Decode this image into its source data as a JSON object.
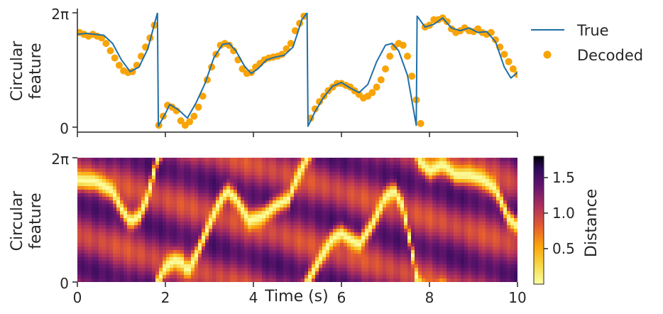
{
  "chart_data": [
    {
      "type": "line",
      "panel": "top",
      "ylabel": [
        "Circular",
        "feature"
      ],
      "yticks": [
        "0",
        "2π"
      ],
      "xlim": [
        0,
        10
      ],
      "ylim": [
        0,
        6.283
      ],
      "series": [
        {
          "name": "True",
          "kind": "line",
          "color": "#1f6fa6",
          "x": [
            0,
            0.2,
            0.4,
            0.6,
            0.8,
            1.0,
            1.2,
            1.4,
            1.6,
            1.82,
            1.84,
            2.0,
            2.1,
            2.3,
            2.5,
            2.7,
            2.9,
            3.1,
            3.3,
            3.45,
            3.6,
            3.8,
            3.95,
            4.1,
            4.3,
            4.5,
            4.7,
            4.9,
            5.1,
            5.22,
            5.24,
            5.4,
            5.6,
            5.8,
            6.0,
            6.2,
            6.4,
            6.6,
            6.8,
            7.0,
            7.15,
            7.3,
            7.5,
            7.7,
            7.72,
            7.9,
            8.1,
            8.3,
            8.5,
            8.7,
            8.9,
            9.1,
            9.3,
            9.5,
            9.7,
            9.85,
            10.0
          ],
          "values": [
            5.1,
            5.15,
            5.1,
            5.05,
            4.6,
            3.7,
            3.05,
            3.3,
            4.3,
            6.28,
            0.05,
            0.75,
            1.25,
            0.95,
            0.5,
            1.35,
            2.4,
            3.8,
            4.55,
            4.6,
            4.2,
            3.35,
            2.95,
            3.2,
            3.7,
            3.85,
            3.95,
            4.4,
            5.9,
            6.28,
            0.05,
            0.85,
            1.65,
            2.25,
            2.45,
            2.15,
            1.9,
            2.35,
            3.6,
            4.5,
            4.6,
            4.2,
            2.85,
            0.1,
            6.1,
            5.5,
            5.65,
            6.0,
            5.45,
            5.3,
            5.45,
            5.2,
            5.25,
            4.7,
            3.3,
            2.7,
            3.0
          ]
        },
        {
          "name": "Decoded",
          "kind": "scatter",
          "color": "#f8a408",
          "x": [
            0.05,
            0.15,
            0.25,
            0.35,
            0.45,
            0.55,
            0.65,
            0.75,
            0.85,
            0.95,
            1.05,
            1.15,
            1.25,
            1.35,
            1.45,
            1.55,
            1.65,
            1.75,
            1.85,
            1.95,
            2.05,
            2.15,
            2.25,
            2.35,
            2.45,
            2.55,
            2.65,
            2.75,
            2.85,
            2.95,
            3.05,
            3.15,
            3.25,
            3.35,
            3.45,
            3.55,
            3.65,
            3.75,
            3.85,
            3.95,
            4.05,
            4.15,
            4.25,
            4.35,
            4.45,
            4.55,
            4.65,
            4.75,
            4.85,
            4.95,
            5.05,
            5.15,
            5.3,
            5.4,
            5.5,
            5.6,
            5.7,
            5.8,
            5.9,
            6.0,
            6.1,
            6.2,
            6.3,
            6.4,
            6.5,
            6.6,
            6.7,
            6.8,
            6.9,
            7.0,
            7.1,
            7.2,
            7.3,
            7.4,
            7.5,
            7.6,
            7.7,
            7.8,
            7.9,
            8.0,
            8.1,
            8.2,
            8.3,
            8.4,
            8.5,
            8.6,
            8.7,
            8.8,
            8.9,
            9.0,
            9.1,
            9.2,
            9.3,
            9.4,
            9.5,
            9.6,
            9.7,
            9.8,
            9.9,
            10.0
          ],
          "values": [
            5.2,
            5.1,
            5.0,
            5.1,
            5.0,
            4.9,
            4.6,
            4.2,
            3.8,
            3.4,
            3.1,
            3.0,
            3.05,
            3.4,
            3.9,
            4.4,
            4.9,
            5.6,
            0.1,
            0.6,
            1.2,
            1.1,
            0.9,
            0.35,
            0.1,
            0.3,
            0.6,
            1.1,
            1.7,
            2.6,
            3.3,
            4.0,
            4.5,
            4.6,
            4.5,
            4.2,
            3.7,
            3.2,
            2.95,
            3.0,
            3.3,
            3.5,
            3.7,
            3.8,
            3.85,
            3.9,
            4.0,
            4.3,
            4.6,
            5.3,
            5.7,
            6.1,
            0.5,
            1.0,
            1.4,
            1.7,
            2.0,
            2.2,
            2.4,
            2.4,
            2.3,
            2.2,
            2.0,
            1.8,
            1.6,
            1.7,
            1.9,
            2.2,
            2.6,
            3.2,
            3.9,
            4.4,
            4.6,
            4.5,
            3.9,
            2.8,
            1.5,
            0.2,
            5.5,
            5.6,
            5.9,
            5.9,
            6.0,
            5.8,
            5.4,
            5.2,
            5.3,
            5.45,
            5.3,
            5.25,
            5.4,
            5.2,
            5.1,
            5.2,
            4.8,
            4.4,
            4.0,
            3.6,
            3.2,
            2.9
          ]
        }
      ],
      "legend": {
        "position": "right",
        "entries": [
          "True",
          "Decoded"
        ]
      }
    },
    {
      "type": "heatmap",
      "panel": "bottom",
      "xlabel": "Time (s)",
      "ylabel": [
        "Circular",
        "feature"
      ],
      "xticks": [
        "0",
        "2",
        "4",
        "6",
        "8",
        "10"
      ],
      "yticks": [
        "0",
        "2π"
      ],
      "xlim": [
        0,
        10
      ],
      "ylim": [
        0,
        6.283
      ],
      "colormap": "inferno_r",
      "colorbar": {
        "label": "Distance",
        "ticks": [
          "0.5",
          "1.0",
          "1.5"
        ],
        "min": 0.0,
        "max": 1.8
      },
      "min_distance_path": {
        "x": [
          0,
          0.4,
          0.8,
          1.0,
          1.2,
          1.4,
          1.6,
          1.82,
          1.84,
          2.0,
          2.2,
          2.4,
          2.5,
          2.7,
          2.9,
          3.2,
          3.4,
          3.6,
          3.9,
          4.2,
          4.5,
          4.8,
          5.0,
          5.22,
          5.24,
          5.5,
          5.8,
          6.0,
          6.2,
          6.4,
          6.7,
          7.0,
          7.2,
          7.4,
          7.6,
          7.72,
          7.74,
          8.0,
          8.3,
          8.6,
          8.9,
          9.2,
          9.5,
          9.8,
          10.0
        ],
        "values": [
          5.15,
          5.1,
          4.6,
          3.7,
          3.05,
          3.3,
          4.3,
          6.28,
          0.05,
          0.75,
          1.1,
          0.95,
          0.5,
          1.35,
          2.4,
          3.9,
          4.6,
          4.2,
          3.1,
          3.3,
          3.85,
          4.2,
          5.3,
          6.28,
          0.05,
          1.1,
          2.2,
          2.45,
          2.15,
          1.9,
          2.9,
          4.3,
          4.6,
          3.8,
          1.6,
          0.05,
          6.2,
          5.6,
          5.95,
          5.4,
          5.4,
          5.2,
          4.7,
          3.2,
          2.8
        ]
      }
    }
  ],
  "labels": {
    "top_ylabel_line1": "Circular",
    "top_ylabel_line2": "feature",
    "bottom_ylabel_line1": "Circular",
    "bottom_ylabel_line2": "feature",
    "xlabel": "Time (s)",
    "ytick_top": "2π",
    "ytick_bottom": "0",
    "legend_true": "True",
    "legend_decoded": "Decoded",
    "colorbar_label": "Distance",
    "cbar_ticks": [
      "0.5",
      "1.0",
      "1.5"
    ],
    "xticks": [
      "0",
      "2",
      "4",
      "6",
      "8",
      "10"
    ]
  }
}
